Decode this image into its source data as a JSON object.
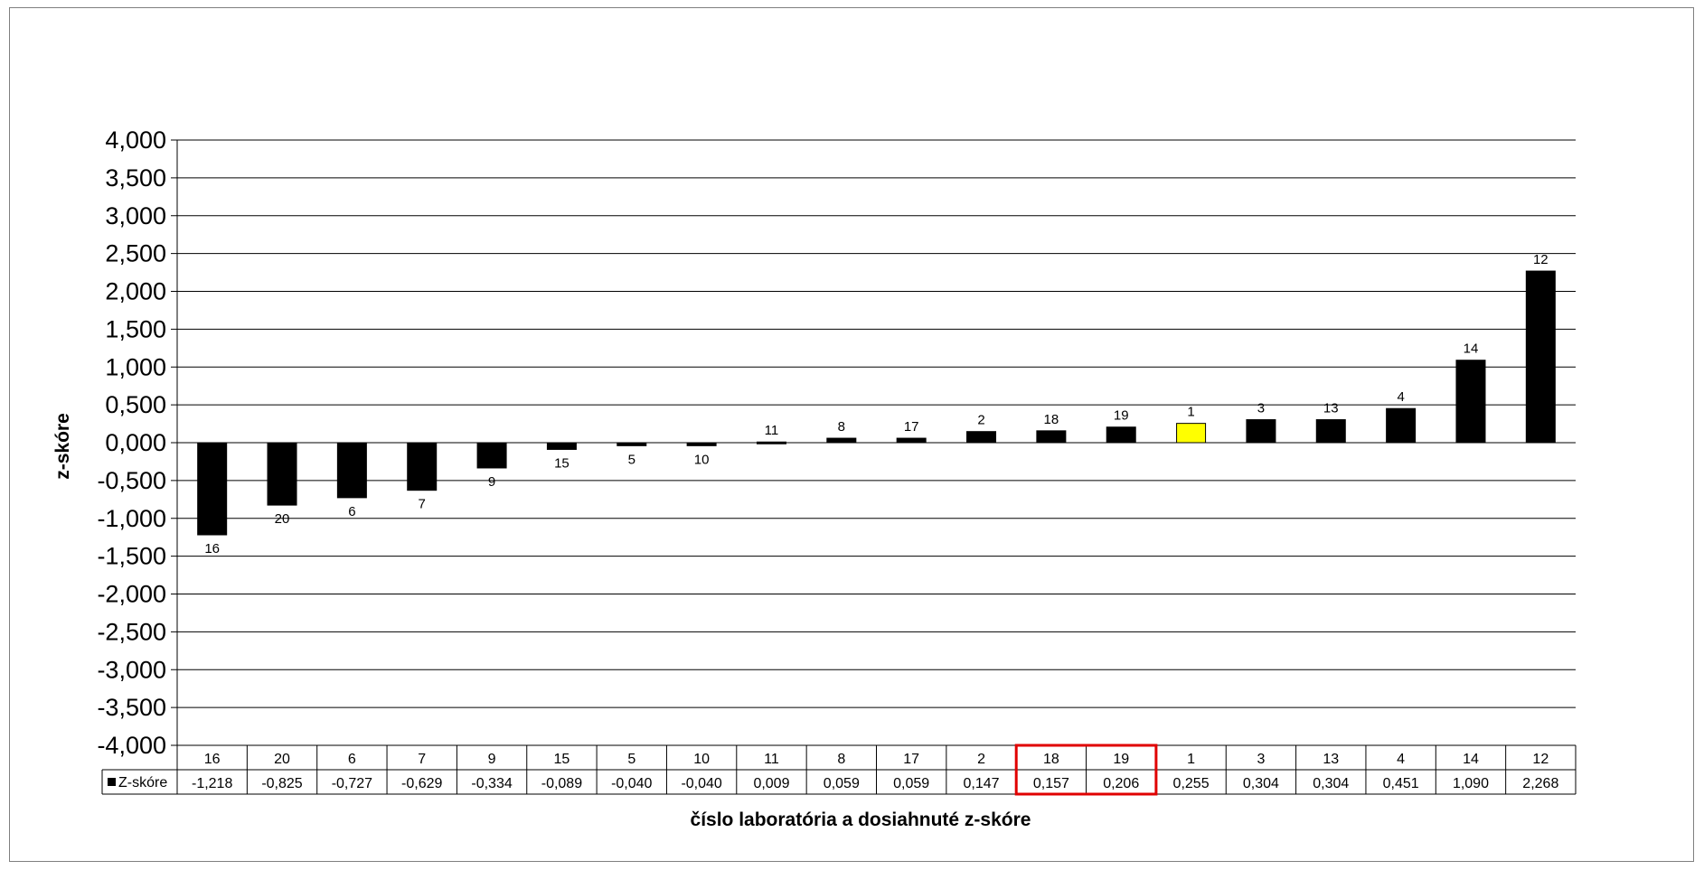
{
  "chart_data": {
    "type": "bar",
    "categories": [
      "16",
      "20",
      "6",
      "7",
      "9",
      "15",
      "5",
      "10",
      "11",
      "8",
      "17",
      "2",
      "18",
      "19",
      "1",
      "3",
      "13",
      "4",
      "14",
      "12"
    ],
    "series": [
      {
        "name": "Z-skóre",
        "values": [
          -1.218,
          -0.825,
          -0.727,
          -0.629,
          -0.334,
          -0.089,
          -0.04,
          -0.04,
          0.009,
          0.059,
          0.059,
          0.147,
          0.157,
          0.206,
          0.255,
          0.304,
          0.304,
          0.451,
          1.09,
          2.268
        ],
        "value_labels": [
          "-1,218",
          "-0,825",
          "-0,727",
          "-0,629",
          "-0,334",
          "-0,089",
          "-0,040",
          "-0,040",
          "0,009",
          "0,059",
          "0,059",
          "0,147",
          "0,157",
          "0,206",
          "0,255",
          "0,304",
          "0,304",
          "0,451",
          "1,090",
          "2,268"
        ]
      }
    ],
    "highlighted_category": "1",
    "highlight_color": "#ffff00",
    "bar_color": "#000000",
    "outlined_categories": [
      "18",
      "19"
    ],
    "outline_color": "#e00000",
    "ylim": [
      -4,
      4
    ],
    "ytick_step": 0.5,
    "yticks": [
      "4,000",
      "3,500",
      "3,000",
      "2,500",
      "2,000",
      "1,500",
      "1,000",
      "0,500",
      "0,000",
      "-0,500",
      "-1,000",
      "-1,500",
      "-2,000",
      "-2,500",
      "-3,000",
      "-3,500",
      "-4,000"
    ],
    "ylabel": "z-skóre",
    "xlabel": "číslo laboratória a dosiahnuté z-skóre",
    "grid": true,
    "data_table": true
  }
}
